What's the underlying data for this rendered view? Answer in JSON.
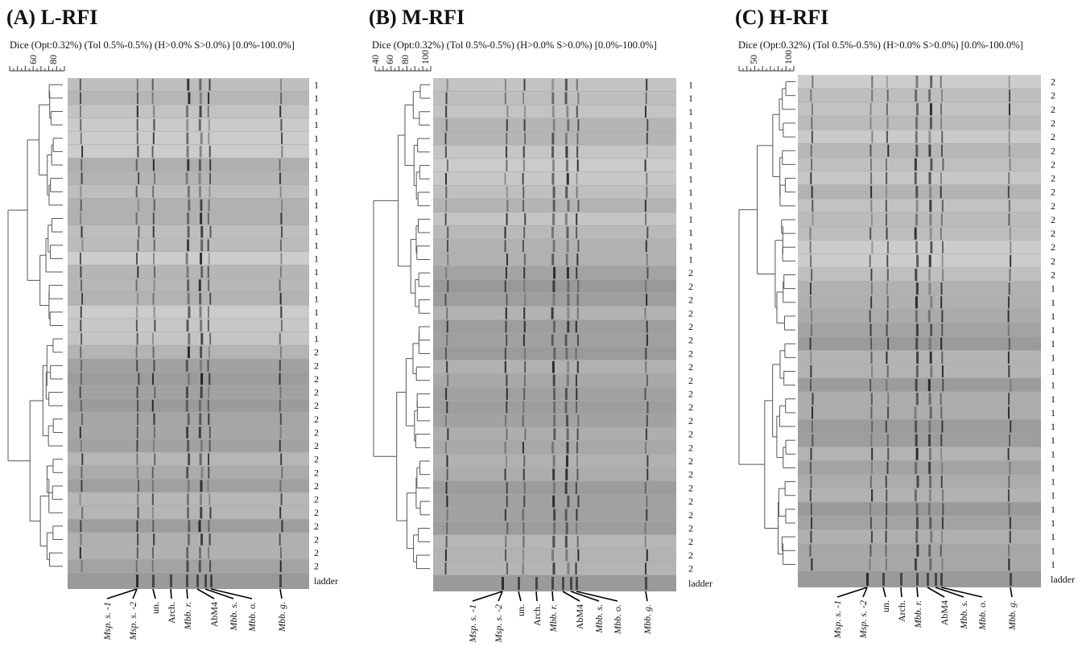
{
  "panels": [
    {
      "title": "(A) L-RFI",
      "subtitle": "Dice (Opt:0.32%) (Tol 0.5%-0.5%) (H>0.0% S>0.0%) [0.0%-100.0%]",
      "scale_ticks": [
        "60",
        "80"
      ],
      "rows": [
        "1",
        "1",
        "1",
        "1",
        "1",
        "1",
        "1",
        "1",
        "1",
        "1",
        "1",
        "1",
        "1",
        "1",
        "1",
        "1",
        "1",
        "1",
        "1",
        "1",
        "2",
        "2",
        "2",
        "2",
        "2",
        "2",
        "2",
        "2",
        "2",
        "2",
        "2",
        "2",
        "2",
        "2",
        "2",
        "2",
        "2"
      ],
      "ladder": "ladder",
      "bands": [
        "Msp. s. -1",
        "Msp. s. -2",
        "un.",
        "Arch.",
        "Mbb. r.",
        "AbM4",
        "Mbb. s.",
        "Mbb. o.",
        "Mbb. g."
      ]
    },
    {
      "title": "(B) M-RFI",
      "subtitle": "Dice (Opt:0.32%) (Tol 0.5%-0.5%) (H>0.0% S>0.0%) [0.0%-100.0%]",
      "scale_ticks": [
        "40",
        "60",
        "80",
        "100"
      ],
      "rows": [
        "1",
        "1",
        "1",
        "1",
        "1",
        "1",
        "1",
        "1",
        "1",
        "1",
        "1",
        "1",
        "1",
        "1",
        "2",
        "2",
        "2",
        "2",
        "2",
        "2",
        "2",
        "2",
        "2",
        "2",
        "2",
        "2",
        "2",
        "2",
        "2",
        "2",
        "2",
        "2",
        "2",
        "2",
        "2",
        "2",
        "2"
      ],
      "ladder": "ladder",
      "bands": [
        "Msp. s. -1",
        "Msp. s. -2",
        "un.",
        "Arch.",
        "Mbb. r.",
        "AbM4",
        "Mbb. s.",
        "Mbb. o.",
        "Mbb. g."
      ]
    },
    {
      "title": "(C) H-RFI",
      "subtitle": "Dice (Opt:0.32%) (Tol 0.5%-0.5%) (H>0.0% S>0.0%) [0.0%-100.0%]",
      "scale_ticks": [
        "50",
        "100"
      ],
      "rows": [
        "2",
        "2",
        "2",
        "2",
        "2",
        "2",
        "2",
        "2",
        "2",
        "2",
        "2",
        "2",
        "2",
        "2",
        "2",
        "1",
        "1",
        "1",
        "1",
        "1",
        "1",
        "1",
        "1",
        "1",
        "1",
        "1",
        "1",
        "1",
        "1",
        "1",
        "1",
        "1",
        "1",
        "1",
        "1",
        "1"
      ],
      "ladder": "ladder",
      "bands": [
        "Msp. s. -1",
        "Msp. s. -2",
        "un.",
        "Arch.",
        "Mbb. r.",
        "AbM4",
        "Mbb. s.",
        "Mbb. o.",
        "Mbb. g."
      ]
    }
  ]
}
